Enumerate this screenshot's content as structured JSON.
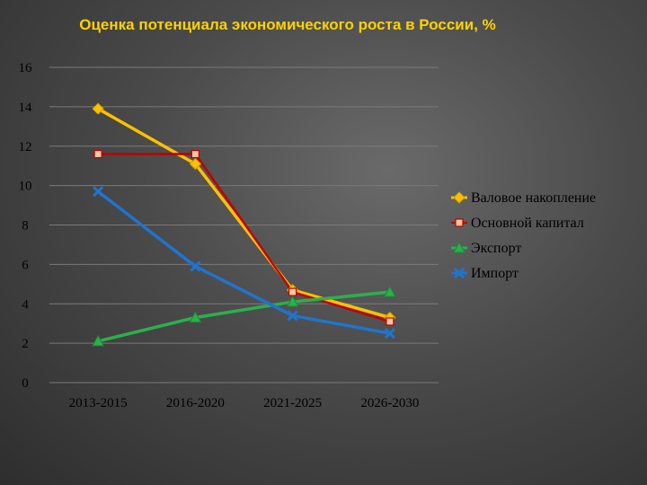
{
  "chart_data": {
    "type": "line",
    "title": "Оценка потенциала экономического роста в России, %",
    "categories": [
      "2013-2015",
      "2016-2020",
      "2021-2025",
      "2026-2030"
    ],
    "ylim": [
      0,
      16
    ],
    "yticks": [
      "0",
      "2",
      "4",
      "6",
      "8",
      "10",
      "12",
      "14",
      "16"
    ],
    "grid": true,
    "legend_position": "right",
    "series": [
      {
        "name": "Валовое накопление",
        "values": [
          13.9,
          11.1,
          4.7,
          3.3
        ],
        "color": "#ffc000",
        "marker": "diamond"
      },
      {
        "name": "Основной капитал",
        "values": [
          11.6,
          11.6,
          4.6,
          3.1
        ],
        "color": "#c00000",
        "marker": "square"
      },
      {
        "name": "Экспорт",
        "values": [
          2.1,
          3.3,
          4.1,
          4.6
        ],
        "color": "#2bb04a",
        "marker": "triangle"
      },
      {
        "name": "Импорт",
        "values": [
          9.7,
          5.9,
          3.4,
          2.5
        ],
        "color": "#1f74d0",
        "marker": "x"
      }
    ]
  }
}
